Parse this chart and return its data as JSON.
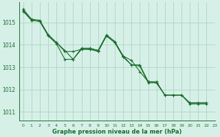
{
  "background_color": "#d6f0e8",
  "grid_color": "#b0d8c4",
  "line_color": "#1a6b2a",
  "title": "Graphe pression niveau de la mer (hPa)",
  "xlim": [
    -0.5,
    23
  ],
  "ylim": [
    1010.6,
    1015.9
  ],
  "yticks": [
    1011,
    1012,
    1013,
    1014,
    1015
  ],
  "xticks": [
    0,
    1,
    2,
    3,
    4,
    5,
    6,
    7,
    8,
    9,
    10,
    11,
    12,
    13,
    14,
    15,
    16,
    17,
    18,
    19,
    20,
    21,
    22,
    23
  ],
  "s1_x": [
    0,
    1,
    2,
    3,
    4,
    5,
    6,
    7,
    8,
    9,
    10,
    11,
    12,
    13,
    14,
    15,
    16,
    17,
    18,
    19,
    20,
    21,
    22
  ],
  "s1_y": [
    1015.5,
    1015.1,
    1015.05,
    1014.4,
    1014.05,
    1013.35,
    1013.35,
    1013.8,
    1013.8,
    1013.75,
    1014.4,
    1014.1,
    1013.45,
    1013.1,
    1013.05,
    1012.3,
    1012.3,
    1011.75,
    1011.75,
    1011.75,
    1011.35,
    1011.35,
    1011.35
  ],
  "s2_x": [
    0,
    1,
    2,
    3,
    4,
    5,
    6,
    7,
    8,
    9,
    10,
    11,
    12,
    13,
    14,
    15,
    16,
    17,
    18,
    19,
    20,
    21,
    22
  ],
  "s2_y": [
    1015.55,
    1015.1,
    1015.05,
    1014.45,
    1014.1,
    1013.75,
    1013.35,
    1013.85,
    1013.85,
    1013.75,
    1014.45,
    1014.15,
    1013.5,
    1013.3,
    1012.8,
    1012.35,
    1012.3,
    1011.75,
    1011.75,
    1011.75,
    1011.4,
    1011.4,
    1011.4
  ],
  "s3_x": [
    0,
    1,
    2,
    3,
    4,
    5,
    6,
    7,
    8,
    9,
    10,
    11,
    12,
    13,
    14,
    15,
    16,
    17,
    18,
    19,
    20,
    21,
    22
  ],
  "s3_y": [
    1015.6,
    1015.15,
    1015.1,
    1014.45,
    1014.1,
    1013.7,
    1013.7,
    1013.8,
    1013.8,
    1013.7,
    1014.4,
    1014.1,
    1013.5,
    1013.1,
    1013.1,
    1012.35,
    1012.35,
    1011.75,
    1011.75,
    1011.75,
    1011.4,
    1011.4,
    1011.4
  ]
}
